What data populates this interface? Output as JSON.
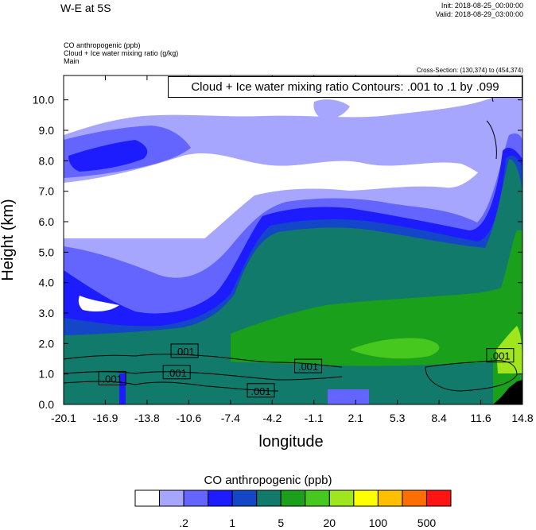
{
  "header": {
    "title": "W-E at 5S",
    "init": "Init: 2018-08-25_00:00:00",
    "valid": "Valid: 2018-08-29_03:00:00",
    "field1": "CO anthropogenic   (ppb)",
    "field2": "Cloud + Ice water mixing ratio   (g/kg)",
    "field3": "Main",
    "cross_section": "Cross-Section: (130,374) to (454,374)"
  },
  "chart_data": {
    "type": "area",
    "contour_label": "Cloud + Ice water mixing ratio Contours: .001 to .1 by .099",
    "xlabel": "longitude",
    "ylabel": "Height (km)",
    "xlim": [
      -20.1,
      14.8
    ],
    "ylim": [
      0,
      10.8
    ],
    "x_ticks": [
      "-20.1",
      "-16.9",
      "-13.8",
      "-10.6",
      "-7.4",
      "-4.2",
      "-1.1",
      "2.1",
      "5.3",
      "8.4",
      "11.6",
      "14.8"
    ],
    "y_ticks": [
      "0.0",
      "1.0",
      "2.0",
      "3.0",
      "4.0",
      "5.0",
      "6.0",
      "7.0",
      "8.0",
      "9.0",
      "10.0"
    ],
    "colorbar": {
      "title": "CO anthropogenic  (ppb)",
      "colors": [
        "#ffffff",
        "#a6a6ff",
        "#6464ff",
        "#1c1cff",
        "#1446c8",
        "#127a6a",
        "#1aa01a",
        "#46c81e",
        "#a0e61e",
        "#ffff00",
        "#ffbe00",
        "#ff6e00",
        "#ff1414"
      ],
      "labels": [
        ".2",
        "1",
        "5",
        "20",
        "100",
        "500"
      ]
    },
    "contour_labels": [
      {
        "text": ".001",
        "x": -10.9,
        "y": 1.75
      },
      {
        "text": ".001",
        "x": -11.5,
        "y": 1.05
      },
      {
        "text": ".001",
        "x": -16.4,
        "y": 0.85
      },
      {
        "text": ".001",
        "x": -1.5,
        "y": 1.25
      },
      {
        "text": ".001",
        "x": -5.1,
        "y": 0.45
      },
      {
        "text": ".001",
        "x": 13.1,
        "y": 1.6
      }
    ]
  }
}
